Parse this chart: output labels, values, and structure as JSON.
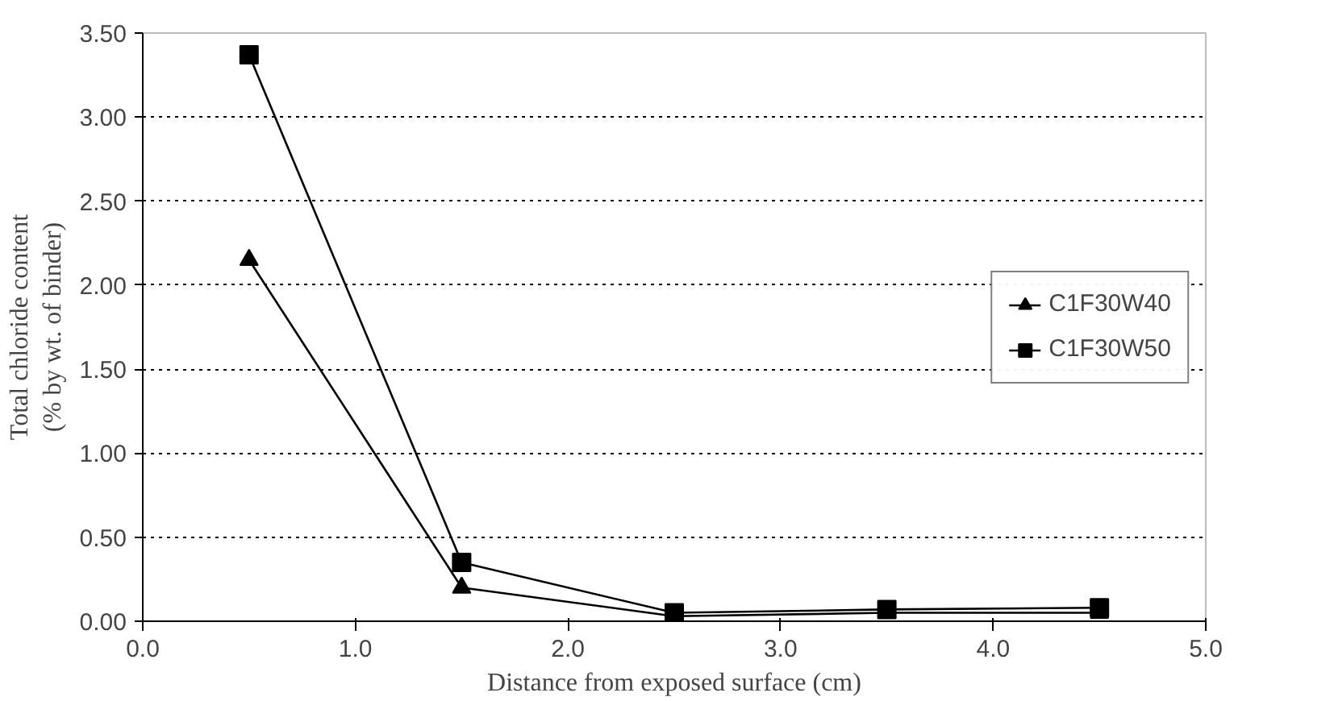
{
  "chart_data": {
    "type": "line",
    "xlabel": "Distance from exposed surface (cm)",
    "ylabel": "Total chloride content\n(% by wt. of binder)",
    "x": [
      0.5,
      1.5,
      2.5,
      3.5,
      4.5
    ],
    "series": [
      {
        "name": "C1F30W40",
        "color": "#000000",
        "marker": "triangle",
        "values": [
          2.15,
          0.2,
          0.03,
          0.05,
          0.05
        ]
      },
      {
        "name": "C1F30W50",
        "color": "#000000",
        "marker": "square",
        "values": [
          3.37,
          0.35,
          0.05,
          0.07,
          0.08
        ]
      }
    ],
    "xlim": [
      0,
      5
    ],
    "xticks": [
      {
        "value": 0,
        "label": "0.0"
      },
      {
        "value": 1,
        "label": "1.0"
      },
      {
        "value": 2,
        "label": "2.0"
      },
      {
        "value": 3,
        "label": "3.0"
      },
      {
        "value": 4,
        "label": "4.0"
      },
      {
        "value": 5,
        "label": "5.0"
      }
    ],
    "ylim": [
      0,
      3.5
    ],
    "yticks": [
      {
        "value": 0,
        "label": "0.00"
      },
      {
        "value": 0.5,
        "label": "0.50"
      },
      {
        "value": 1,
        "label": "1.00"
      },
      {
        "value": 1.5,
        "label": "1.50"
      },
      {
        "value": 2,
        "label": "2.00"
      },
      {
        "value": 2.5,
        "label": "2.50"
      },
      {
        "value": 3,
        "label": "3.00"
      },
      {
        "value": 3.5,
        "label": "3.50"
      }
    ],
    "grid": "y",
    "legend": "right",
    "line_style": "solid"
  }
}
